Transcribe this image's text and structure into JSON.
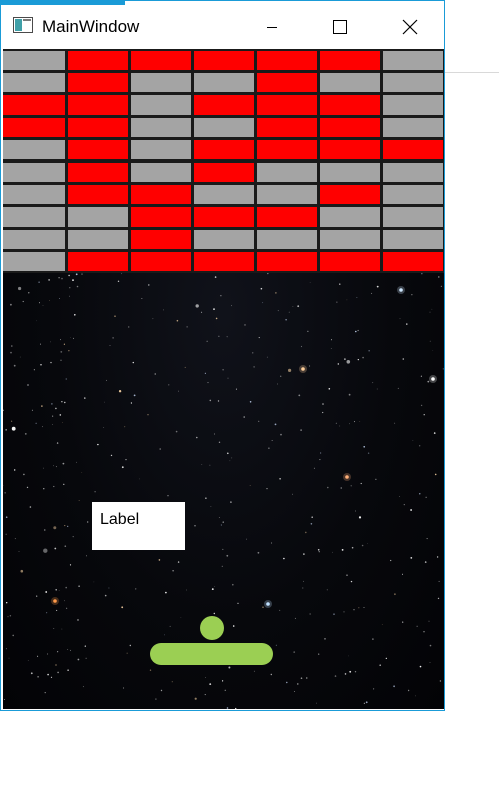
{
  "window": {
    "title": "MainWindow",
    "icon": "app-window-icon",
    "controls": {
      "minimize_icon": "minimize-icon",
      "maximize_icon": "maximize-icon",
      "close_icon": "close-icon"
    },
    "accent_color": "#1a9bd7"
  },
  "game": {
    "label_text": "Label",
    "colors": {
      "brick_red": "#ff0000",
      "brick_gray": "#a4a4a4",
      "ball": "#9bcf53",
      "paddle": "#9bcf53",
      "background": "starfield"
    },
    "brick_columns": 7,
    "brick_rows": 10,
    "brick_grid": [
      [
        "gray",
        "red",
        "red",
        "red",
        "red",
        "red",
        "gray"
      ],
      [
        "gray",
        "red",
        "gray",
        "gray",
        "red",
        "gray",
        "gray"
      ],
      [
        "red",
        "red",
        "gray",
        "red",
        "red",
        "red",
        "gray"
      ],
      [
        "red",
        "red",
        "gray",
        "gray",
        "red",
        "red",
        "gray"
      ],
      [
        "gray",
        "red",
        "gray",
        "red",
        "red",
        "red",
        "red"
      ],
      [
        "gray",
        "red",
        "gray",
        "red",
        "gray",
        "gray",
        "gray"
      ],
      [
        "gray",
        "red",
        "red",
        "gray",
        "gray",
        "red",
        "gray"
      ],
      [
        "gray",
        "gray",
        "red",
        "red",
        "red",
        "gray",
        "gray"
      ],
      [
        "gray",
        "gray",
        "red",
        "gray",
        "gray",
        "gray",
        "gray"
      ],
      [
        "gray",
        "red",
        "red",
        "red",
        "red",
        "red",
        "red"
      ]
    ]
  }
}
